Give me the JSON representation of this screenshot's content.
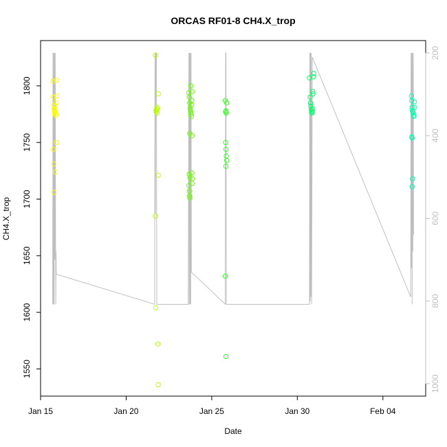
{
  "chart_data": {
    "type": "scatter",
    "title": "ORCAS RF01-8 CH4.X_trop",
    "xlabel": "Date",
    "ylabel": "CH4.X_trop",
    "x_axis": {
      "type": "date",
      "range": [
        "2016-01-15T00:00",
        "2016-02-06T12:00"
      ],
      "ticks": [
        {
          "date": "2016-01-15",
          "label": "Jan 15"
        },
        {
          "date": "2016-01-20",
          "label": "Jan 20"
        },
        {
          "date": "2016-01-25",
          "label": "Jan 25"
        },
        {
          "date": "2016-01-30",
          "label": "Jan 30"
        },
        {
          "date": "2016-02-04",
          "label": "Feb 04"
        }
      ]
    },
    "y_axis": {
      "range": [
        1526,
        1840
      ],
      "ticks": [
        1550,
        1600,
        1650,
        1700,
        1750,
        1800
      ]
    },
    "y2_axis": {
      "range": [
        1030,
        170
      ],
      "ticks": [
        200,
        400,
        600,
        800,
        1000
      ],
      "color": "#bebebe"
    },
    "grid": false,
    "legend": "none",
    "colors": {
      "pressure_trace": "#bebebe",
      "flight_colors": [
        "#ffff00",
        "#b8ff00",
        "#66ff00",
        "#33ff22",
        "#00ff66",
        "#00ffaa"
      ]
    },
    "flights": [
      {
        "date": "2016-01-15T19:00",
        "color": "#ffff00",
        "points": [
          [
            "2016-01-15T17:30",
            1804
          ],
          [
            "2016-01-15T18:00",
            1790
          ],
          [
            "2016-01-15T18:30",
            1783
          ],
          [
            "2016-01-15T19:00",
            1780
          ],
          [
            "2016-01-15T19:20",
            1779
          ],
          [
            "2016-01-15T19:40",
            1777
          ],
          [
            "2016-01-15T20:00",
            1775
          ],
          [
            "2016-01-15T20:20",
            1782
          ],
          [
            "2016-01-15T20:40",
            1778
          ],
          [
            "2016-01-15T21:00",
            1776
          ],
          [
            "2016-01-15T21:30",
            1774
          ],
          [
            "2016-01-15T22:00",
            1805
          ],
          [
            "2016-01-15T22:30",
            1791
          ],
          [
            "2016-01-15T18:10",
            1744
          ],
          [
            "2016-01-15T18:40",
            1731
          ],
          [
            "2016-01-15T20:30",
            1724
          ],
          [
            "2016-01-15T22:00",
            1750
          ],
          [
            "2016-01-15T19:00",
            1706
          ],
          [
            "2016-01-15T21:10",
            1785
          ]
        ]
      },
      {
        "date": "2016-01-21T19:00",
        "color": "#b8ff00",
        "points": [
          [
            "2016-01-21T17:00",
            1827
          ],
          [
            "2016-01-21T17:30",
            1778
          ],
          [
            "2016-01-21T18:00",
            1777
          ],
          [
            "2016-01-21T18:30",
            1779
          ],
          [
            "2016-01-21T19:00",
            1781
          ],
          [
            "2016-01-21T19:30",
            1776
          ],
          [
            "2016-01-21T20:00",
            1780
          ],
          [
            "2016-01-21T21:00",
            1793
          ],
          [
            "2016-01-21T21:00",
            1721
          ],
          [
            "2016-01-21T17:00",
            1685
          ],
          [
            "2016-01-21T17:30",
            1604
          ],
          [
            "2016-01-21T20:30",
            1572
          ],
          [
            "2016-01-21T21:00",
            1536
          ]
        ]
      },
      {
        "date": "2016-01-23T19:00",
        "color": "#66ff00",
        "points": [
          [
            "2016-01-23T16:00",
            1794
          ],
          [
            "2016-01-23T16:30",
            1790
          ],
          [
            "2016-01-23T17:00",
            1785
          ],
          [
            "2016-01-23T17:30",
            1781
          ],
          [
            "2016-01-23T18:00",
            1779
          ],
          [
            "2016-01-23T18:30",
            1777
          ],
          [
            "2016-01-23T19:00",
            1775
          ],
          [
            "2016-01-23T19:30",
            1773
          ],
          [
            "2016-01-23T20:00",
            1787
          ],
          [
            "2016-01-23T20:30",
            1795
          ],
          [
            "2016-01-23T18:40",
            1800
          ],
          [
            "2016-01-23T19:50",
            1783
          ],
          [
            "2016-01-23T17:10",
            1758
          ],
          [
            "2016-01-23T20:30",
            1756
          ],
          [
            "2016-01-23T16:30",
            1722
          ],
          [
            "2016-01-23T17:20",
            1719
          ],
          [
            "2016-01-23T20:10",
            1723
          ],
          [
            "2016-01-23T20:40",
            1718
          ],
          [
            "2016-01-23T16:00",
            1712
          ],
          [
            "2016-01-23T16:40",
            1707
          ],
          [
            "2016-01-23T17:00",
            1703
          ],
          [
            "2016-01-23T17:20",
            1701
          ],
          [
            "2016-01-23T20:20",
            1714
          ]
        ]
      },
      {
        "date": "2016-01-25T20:00",
        "color": "#33ff22",
        "points": [
          [
            "2016-01-25T19:00",
            1787
          ],
          [
            "2016-01-25T19:30",
            1777
          ],
          [
            "2016-01-25T20:00",
            1778
          ],
          [
            "2016-01-25T20:30",
            1776
          ],
          [
            "2016-01-25T21:00",
            1785
          ],
          [
            "2016-01-25T19:30",
            1750
          ],
          [
            "2016-01-25T20:00",
            1744
          ],
          [
            "2016-01-25T20:30",
            1738
          ],
          [
            "2016-01-25T21:00",
            1734
          ],
          [
            "2016-01-25T20:00",
            1729
          ],
          [
            "2016-01-25T19:00",
            1632
          ],
          [
            "2016-01-25T20:00",
            1561
          ]
        ]
      },
      {
        "date": "2016-01-30T20:00",
        "color": "#00ff66",
        "points": [
          [
            "2016-01-30T17:00",
            1807
          ],
          [
            "2016-01-30T18:00",
            1790
          ],
          [
            "2016-01-30T18:30",
            1785
          ],
          [
            "2016-01-30T19:00",
            1782
          ],
          [
            "2016-01-30T19:30",
            1779
          ],
          [
            "2016-01-30T20:00",
            1777
          ],
          [
            "2016-01-30T20:30",
            1776
          ],
          [
            "2016-01-30T21:00",
            1778
          ],
          [
            "2016-01-30T21:30",
            1780
          ],
          [
            "2016-01-30T22:00",
            1793
          ],
          [
            "2016-01-30T22:30",
            1808
          ],
          [
            "2016-01-30T23:00",
            1811
          ],
          [
            "2016-01-30T21:40",
            1795
          ]
        ]
      },
      {
        "date": "2016-02-05T18:00",
        "color": "#00ffaa",
        "points": [
          [
            "2016-02-05T16:00",
            1791
          ],
          [
            "2016-02-05T16:30",
            1787
          ],
          [
            "2016-02-05T17:00",
            1781
          ],
          [
            "2016-02-05T17:30",
            1778
          ],
          [
            "2016-02-05T18:00",
            1777
          ],
          [
            "2016-02-05T18:30",
            1776
          ],
          [
            "2016-02-05T19:00",
            1774
          ],
          [
            "2016-02-05T19:30",
            1773
          ],
          [
            "2016-02-05T20:00",
            1786
          ],
          [
            "2016-02-05T20:30",
            1781
          ],
          [
            "2016-02-05T16:30",
            1755
          ],
          [
            "2016-02-05T17:00",
            1754
          ],
          [
            "2016-02-05T17:30",
            1718
          ],
          [
            "2016-02-05T17:00",
            1711
          ]
        ]
      }
    ],
    "pressure_series": [
      [
        "2016-01-15T17:00",
        808
      ],
      [
        "2016-01-15T17:30",
        200
      ],
      [
        "2016-01-15T18:00",
        808
      ],
      [
        "2016-01-15T18:30",
        200
      ],
      [
        "2016-01-15T19:00",
        808
      ],
      [
        "2016-01-15T19:30",
        200
      ],
      [
        "2016-01-15T20:00",
        700
      ],
      [
        "2016-01-15T20:30",
        200
      ],
      [
        "2016-01-15T21:00",
        660
      ],
      [
        "2016-01-15T21:20",
        808
      ],
      [
        "2016-01-15T21:40",
        680
      ],
      [
        "2016-01-15T22:00",
        735
      ],
      [
        "2016-01-21T16:00",
        808
      ],
      [
        "2016-01-21T16:30",
        200
      ],
      [
        "2016-01-21T17:00",
        590
      ],
      [
        "2016-01-21T17:30",
        200
      ],
      [
        "2016-01-21T18:00",
        200
      ],
      [
        "2016-01-21T18:30",
        200
      ],
      [
        "2016-01-21T19:00",
        808
      ],
      [
        "2016-01-21T20:00",
        808
      ],
      [
        "2016-01-23T15:00",
        808
      ],
      [
        "2016-01-23T16:00",
        200
      ],
      [
        "2016-01-23T16:30",
        808
      ],
      [
        "2016-01-23T17:00",
        200
      ],
      [
        "2016-01-23T17:30",
        808
      ],
      [
        "2016-01-23T18:00",
        200
      ],
      [
        "2016-01-23T18:30",
        808
      ],
      [
        "2016-01-23T19:00",
        200
      ],
      [
        "2016-01-23T19:30",
        730
      ],
      [
        "2016-01-25T19:00",
        808
      ],
      [
        "2016-01-25T19:30",
        200
      ],
      [
        "2016-01-25T20:00",
        200
      ],
      [
        "2016-01-25T20:30",
        808
      ],
      [
        "2016-01-30T17:00",
        808
      ],
      [
        "2016-01-30T17:30",
        200
      ],
      [
        "2016-01-30T18:00",
        800
      ],
      [
        "2016-01-30T18:30",
        200
      ],
      [
        "2016-01-30T19:00",
        790
      ],
      [
        "2016-01-30T19:30",
        200
      ],
      [
        "2016-01-30T20:00",
        808
      ],
      [
        "2016-01-30T21:00",
        210
      ],
      [
        "2016-02-05T15:00",
        790
      ],
      [
        "2016-02-05T15:30",
        200
      ],
      [
        "2016-02-05T16:00",
        720
      ],
      [
        "2016-02-05T16:30",
        200
      ],
      [
        "2016-02-05T17:00",
        808
      ],
      [
        "2016-02-05T17:30",
        200
      ],
      [
        "2016-02-05T18:00",
        680
      ],
      [
        "2016-02-05T18:30",
        200
      ],
      [
        "2016-02-05T19:00",
        640
      ]
    ]
  }
}
